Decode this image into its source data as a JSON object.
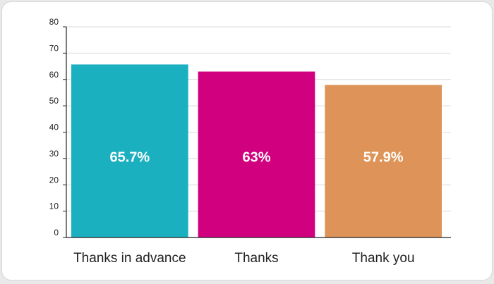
{
  "chart_data": {
    "type": "bar",
    "title": "",
    "xlabel": "",
    "ylabel": "",
    "categories": [
      "Thanks in advance",
      "Thanks",
      "Thank you"
    ],
    "values": [
      65.7,
      63,
      57.9
    ],
    "data_labels": [
      "65.7%",
      "63%",
      "57.9%"
    ],
    "colors": [
      "#1ab0c0",
      "#d1007f",
      "#de9458"
    ],
    "yticks": [
      0,
      10,
      20,
      30,
      40,
      50,
      60,
      70,
      80
    ],
    "ylim": [
      0,
      80
    ],
    "grid": true,
    "legend": "none"
  }
}
